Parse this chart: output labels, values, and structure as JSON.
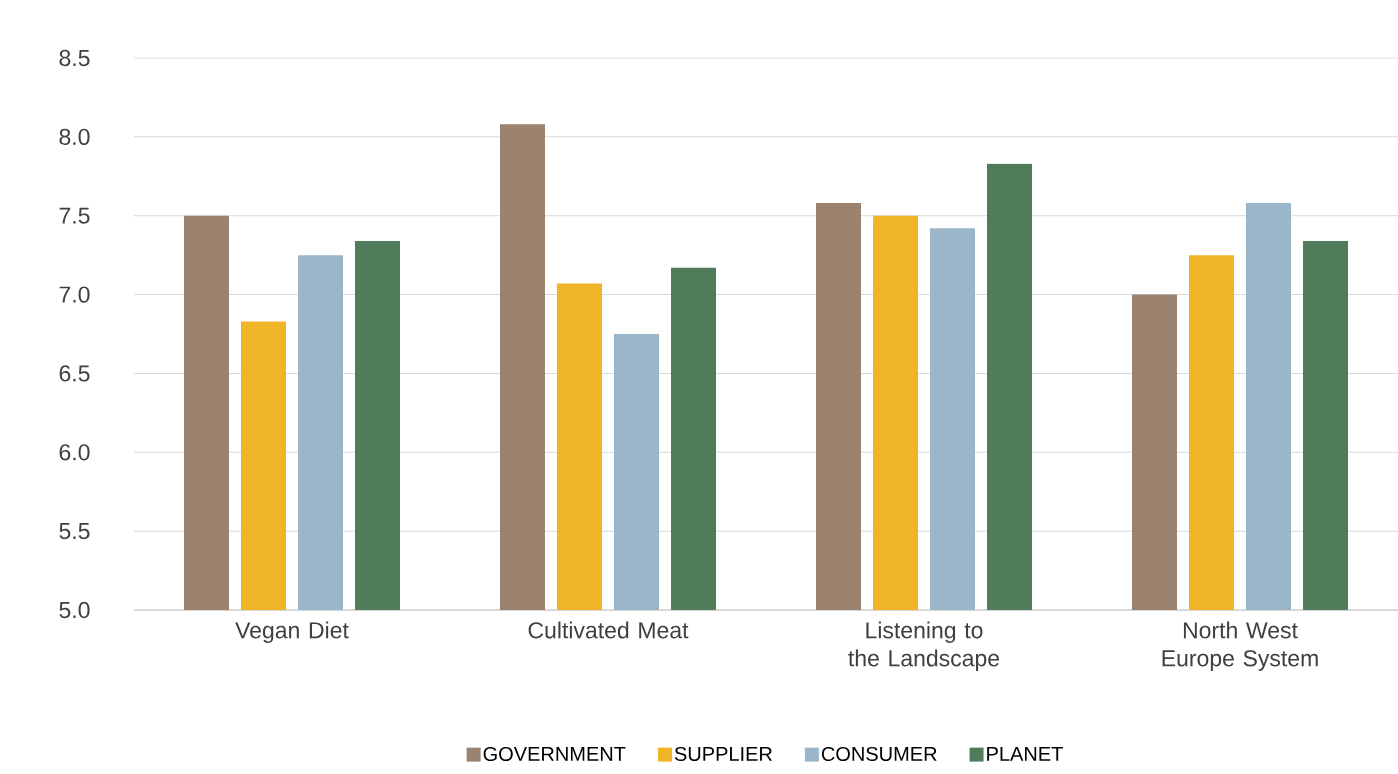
{
  "chart_data": {
    "type": "bar",
    "categories": [
      "Vegan Diet",
      "Cultivated Meat",
      "Listening to the Landscape",
      "North West Europe System"
    ],
    "series": [
      {
        "name": "GOVERNMENT",
        "color": "#9b8370",
        "values": [
          7.5,
          8.08,
          7.58,
          7.0
        ]
      },
      {
        "name": "SUPPLIER",
        "color": "#efb526",
        "values": [
          6.83,
          7.07,
          7.5,
          7.25
        ]
      },
      {
        "name": "CONSUMER",
        "color": "#9bb5c9",
        "values": [
          7.25,
          6.75,
          7.42,
          7.58
        ]
      },
      {
        "name": "PLANET",
        "color": "#517c5b",
        "values": [
          7.34,
          7.17,
          7.83,
          7.34
        ]
      }
    ],
    "ylim": [
      5.0,
      8.5
    ],
    "yticks": [
      {
        "value": 5.0,
        "label": "5.0"
      },
      {
        "value": 5.5,
        "label": "5.5"
      },
      {
        "value": 6.0,
        "label": "6.0"
      },
      {
        "value": 6.5,
        "label": "6.5"
      },
      {
        "value": 7.0,
        "label": "7.0"
      },
      {
        "value": 7.5,
        "label": "7.5"
      },
      {
        "value": 8.0,
        "label": "8.0"
      },
      {
        "value": 8.5,
        "label": "8.5"
      }
    ],
    "grid": "y",
    "legend": "bottom"
  }
}
